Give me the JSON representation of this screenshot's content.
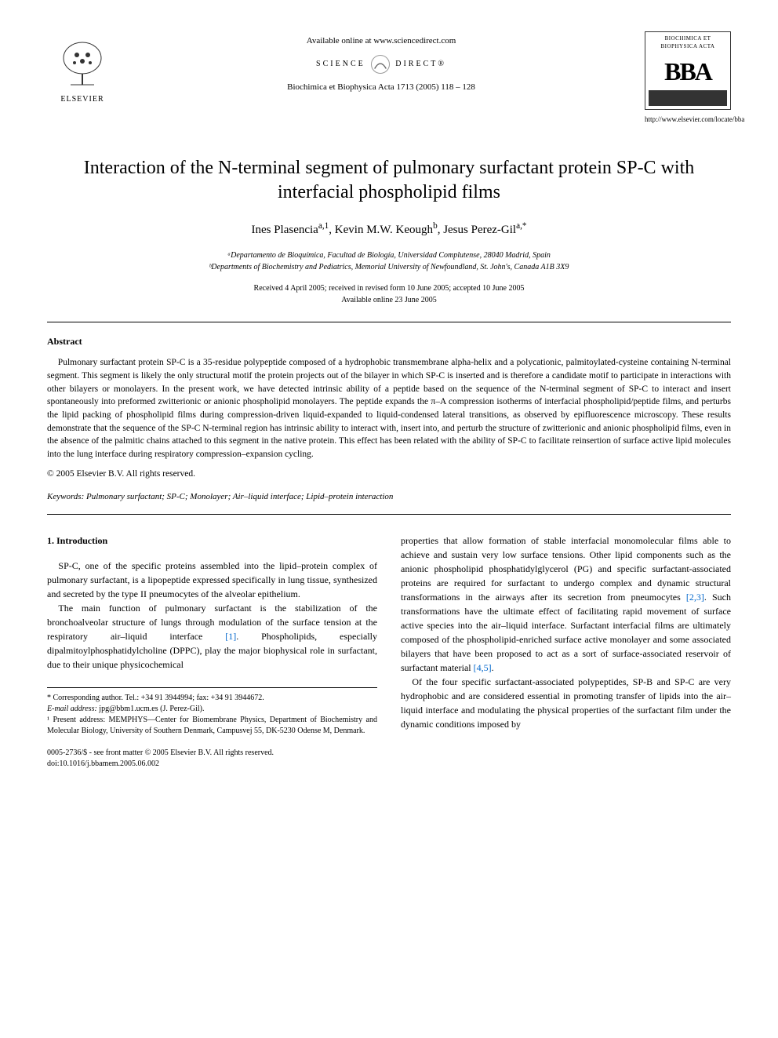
{
  "header": {
    "available_online": "Available online at www.sciencedirect.com",
    "science_direct_left": "SCIENCE",
    "science_direct_right": "DIRECT®",
    "journal_ref": "Biochimica et Biophysica Acta 1713 (2005) 118 – 128",
    "elsevier": "ELSEVIER",
    "bba_subtitle": "BIOCHIMICA ET BIOPHYSICA ACTA",
    "bba_letters": "BBA",
    "journal_url": "http://www.elsevier.com/locate/bba"
  },
  "article": {
    "title": "Interaction of the N-terminal segment of pulmonary surfactant protein SP-C with interfacial phospholipid films",
    "authors_html": "Ines Plasencia<sup>a,1</sup>, Kevin M.W. Keough<sup>b</sup>, Jesus Perez-Gil<sup>a,*</sup>",
    "affiliation_a": "ᵃDepartamento de Bioquímica, Facultad de Biología, Universidad Complutense, 28040 Madrid, Spain",
    "affiliation_b": "ᵇDepartments of Biochemistry and Pediatrics, Memorial University of Newfoundland, St. John's, Canada A1B 3X9",
    "dates_line1": "Received 4 April 2005; received in revised form 10 June 2005; accepted 10 June 2005",
    "dates_line2": "Available online 23 June 2005"
  },
  "abstract": {
    "heading": "Abstract",
    "text": "Pulmonary surfactant protein SP-C is a 35-residue polypeptide composed of a hydrophobic transmembrane alpha-helix and a polycationic, palmitoylated-cysteine containing N-terminal segment. This segment is likely the only structural motif the protein projects out of the bilayer in which SP-C is inserted and is therefore a candidate motif to participate in interactions with other bilayers or monolayers. In the present work, we have detected intrinsic ability of a peptide based on the sequence of the N-terminal segment of SP-C to interact and insert spontaneously into preformed zwitterionic or anionic phospholipid monolayers. The peptide expands the π–A compression isotherms of interfacial phospholipid/peptide films, and perturbs the lipid packing of phospholipid films during compression-driven liquid-expanded to liquid-condensed lateral transitions, as observed by epifluorescence microscopy. These results demonstrate that the sequence of the SP-C N-terminal region has intrinsic ability to interact with, insert into, and perturb the structure of zwitterionic and anionic phospholipid films, even in the absence of the palmitic chains attached to this segment in the native protein. This effect has been related with the ability of SP-C to facilitate reinsertion of surface active lipid molecules into the lung interface during respiratory compression–expansion cycling.",
    "copyright": "© 2005 Elsevier B.V. All rights reserved.",
    "keywords_label": "Keywords:",
    "keywords": "Pulmonary surfactant; SP-C; Monolayer; Air–liquid interface; Lipid–protein interaction"
  },
  "body": {
    "section_heading": "1. Introduction",
    "col1_p1": "SP-C, one of the specific proteins assembled into the lipid–protein complex of pulmonary surfactant, is a lipopeptide expressed specifically in lung tissue, synthesized and secreted by the type II pneumocytes of the alveolar epithelium.",
    "col1_p2_pre": "The main function of pulmonary surfactant is the stabilization of the bronchoalveolar structure of lungs through modulation of the surface tension at the respiratory air–liquid interface ",
    "col1_p2_ref": "[1]",
    "col1_p2_post": ". Phospholipids, especially dipalmitoylphosphatidylcholine (DPPC), play the major biophysical role in surfactant, due to their unique physicochemical",
    "col2_p1_pre": "properties that allow formation of stable interfacial monomolecular films able to achieve and sustain very low surface tensions. Other lipid components such as the anionic phospholipid phosphatidylglycerol (PG) and specific surfactant-associated proteins are required for surfactant to undergo complex and dynamic structural transformations in the airways after its secretion from pneumocytes ",
    "col2_p1_ref1": "[2,3]",
    "col2_p1_mid": ". Such transformations have the ultimate effect of facilitating rapid movement of surface active species into the air–liquid interface. Surfactant interfacial films are ultimately composed of the phospholipid-enriched surface active monolayer and some associated bilayers that have been proposed to act as a sort of surface-associated reservoir of surfactant material ",
    "col2_p1_ref2": "[4,5]",
    "col2_p1_post": ".",
    "col2_p2": "Of the four specific surfactant-associated polypeptides, SP-B and SP-C are very hydrophobic and are considered essential in promoting transfer of lipids into the air–liquid interface and modulating the physical properties of the surfactant film under the dynamic conditions imposed by"
  },
  "footnotes": {
    "corresponding": "* Corresponding author. Tel.: +34 91 3944994; fax: +34 91 3944672.",
    "email_label": "E-mail address:",
    "email": "jpg@bbm1.ucm.es (J. Perez-Gil).",
    "present_address": "¹ Present address: MEMPHYS—Center for Biomembrane Physics, Department of Biochemistry and Molecular Biology, University of Southern Denmark, Campusvej 55, DK-5230 Odense M, Denmark."
  },
  "footer": {
    "line1": "0005-2736/$ - see front matter © 2005 Elsevier B.V. All rights reserved.",
    "line2": "doi:10.1016/j.bbamem.2005.06.002"
  },
  "colors": {
    "text": "#000000",
    "link": "#0066cc",
    "background": "#ffffff",
    "rule": "#000000"
  }
}
